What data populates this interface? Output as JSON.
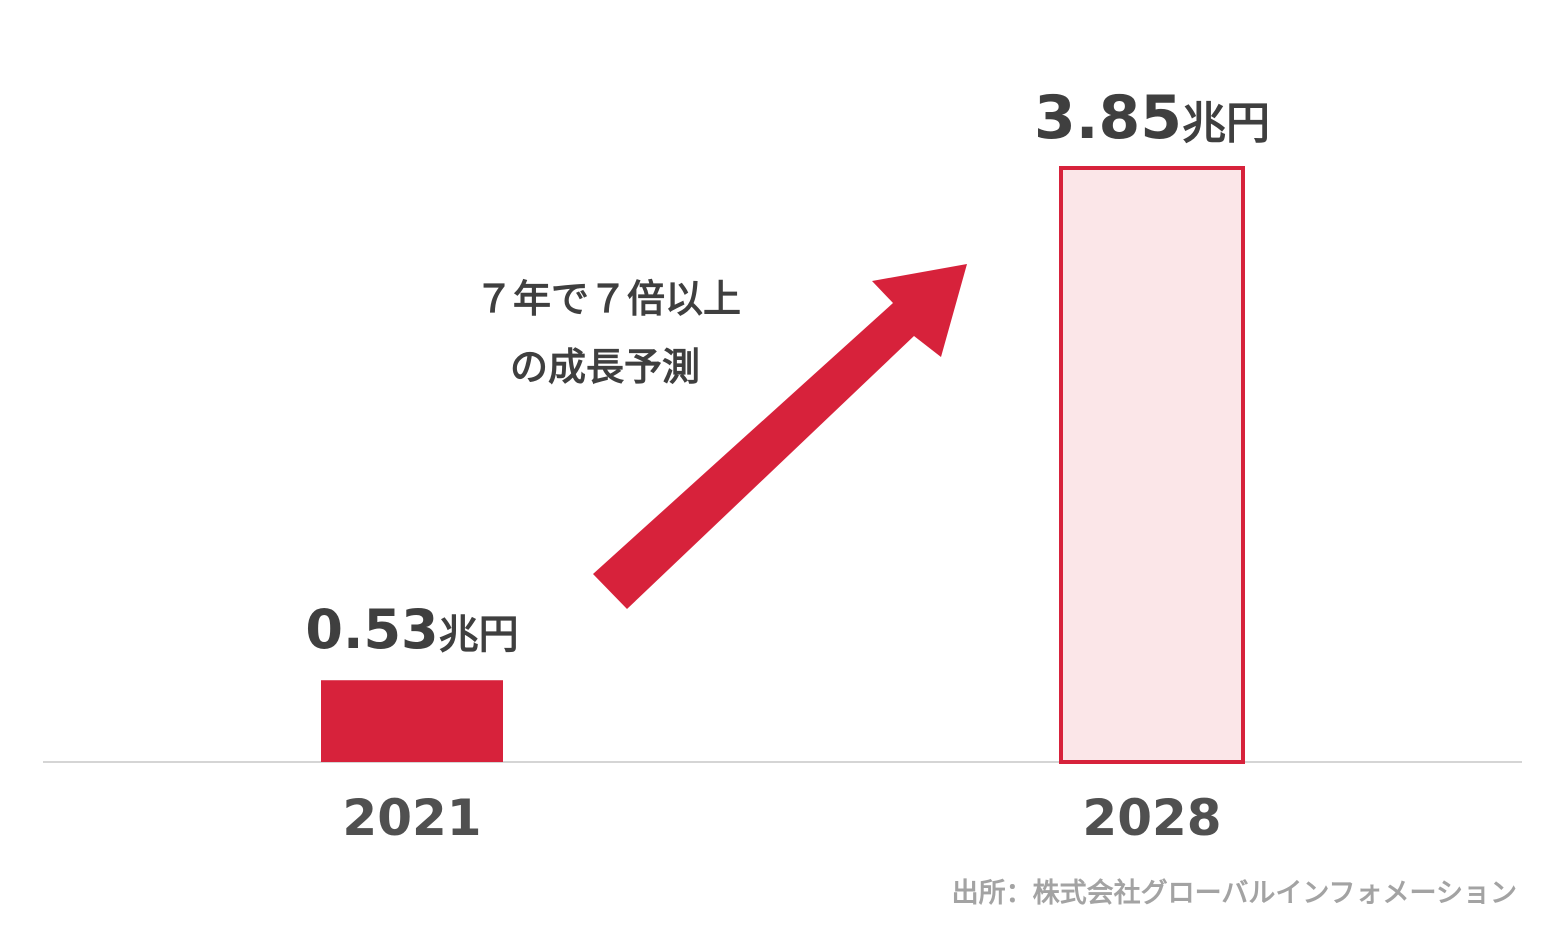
{
  "chart_data": {
    "type": "bar",
    "categories": [
      "2021",
      "2028"
    ],
    "values": [
      0.53,
      3.85
    ],
    "data_labels": [
      {
        "value": "0.53",
        "unit": "兆円"
      },
      {
        "value": "3.85",
        "unit": "兆円"
      }
    ],
    "ylim": [
      0,
      3.85
    ],
    "grid": false,
    "annotation": {
      "line1": "７年で７倍以上",
      "line2": "の成長予測"
    },
    "source": "出所：株式会社グローバルインフォメーション"
  },
  "colors": {
    "bar_2021_fill": "#d7223b",
    "bar_2028_fill": "#fbe6e8",
    "bar_2028_stroke": "#d7223b",
    "arrow": "#d7223b",
    "baseline": "#d5d5d5"
  }
}
